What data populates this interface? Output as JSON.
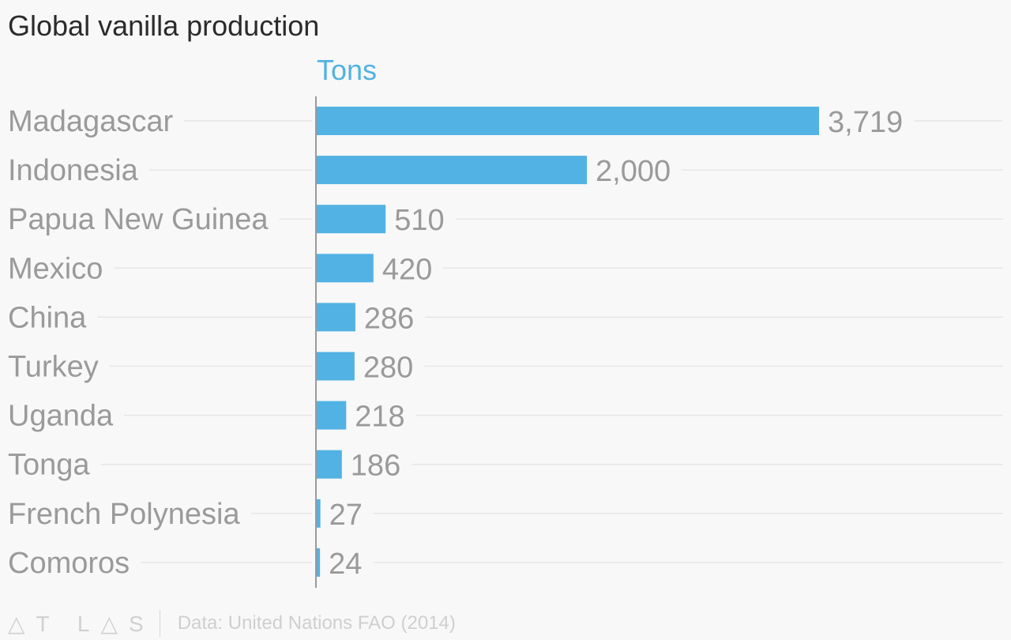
{
  "chart_data": {
    "type": "bar",
    "orientation": "horizontal",
    "title": "Global vanilla production",
    "unit_label": "Tons",
    "categories": [
      "Madagascar",
      "Indonesia",
      "Papua New Guinea",
      "Mexico",
      "China",
      "Turkey",
      "Uganda",
      "Tonga",
      "French Polynesia",
      "Comoros"
    ],
    "values": [
      3719,
      2000,
      510,
      420,
      286,
      280,
      218,
      186,
      27,
      24
    ],
    "data_labels": [
      "3,719",
      "2,000",
      "510",
      "420",
      "286",
      "280",
      "218",
      "186",
      "27",
      "24"
    ],
    "bar_color": "#52b2e3",
    "grid": true,
    "xlim": [
      0,
      3719
    ]
  },
  "footer": {
    "logo": "ATLAS",
    "source": "Data: United Nations FAO (2014)"
  }
}
